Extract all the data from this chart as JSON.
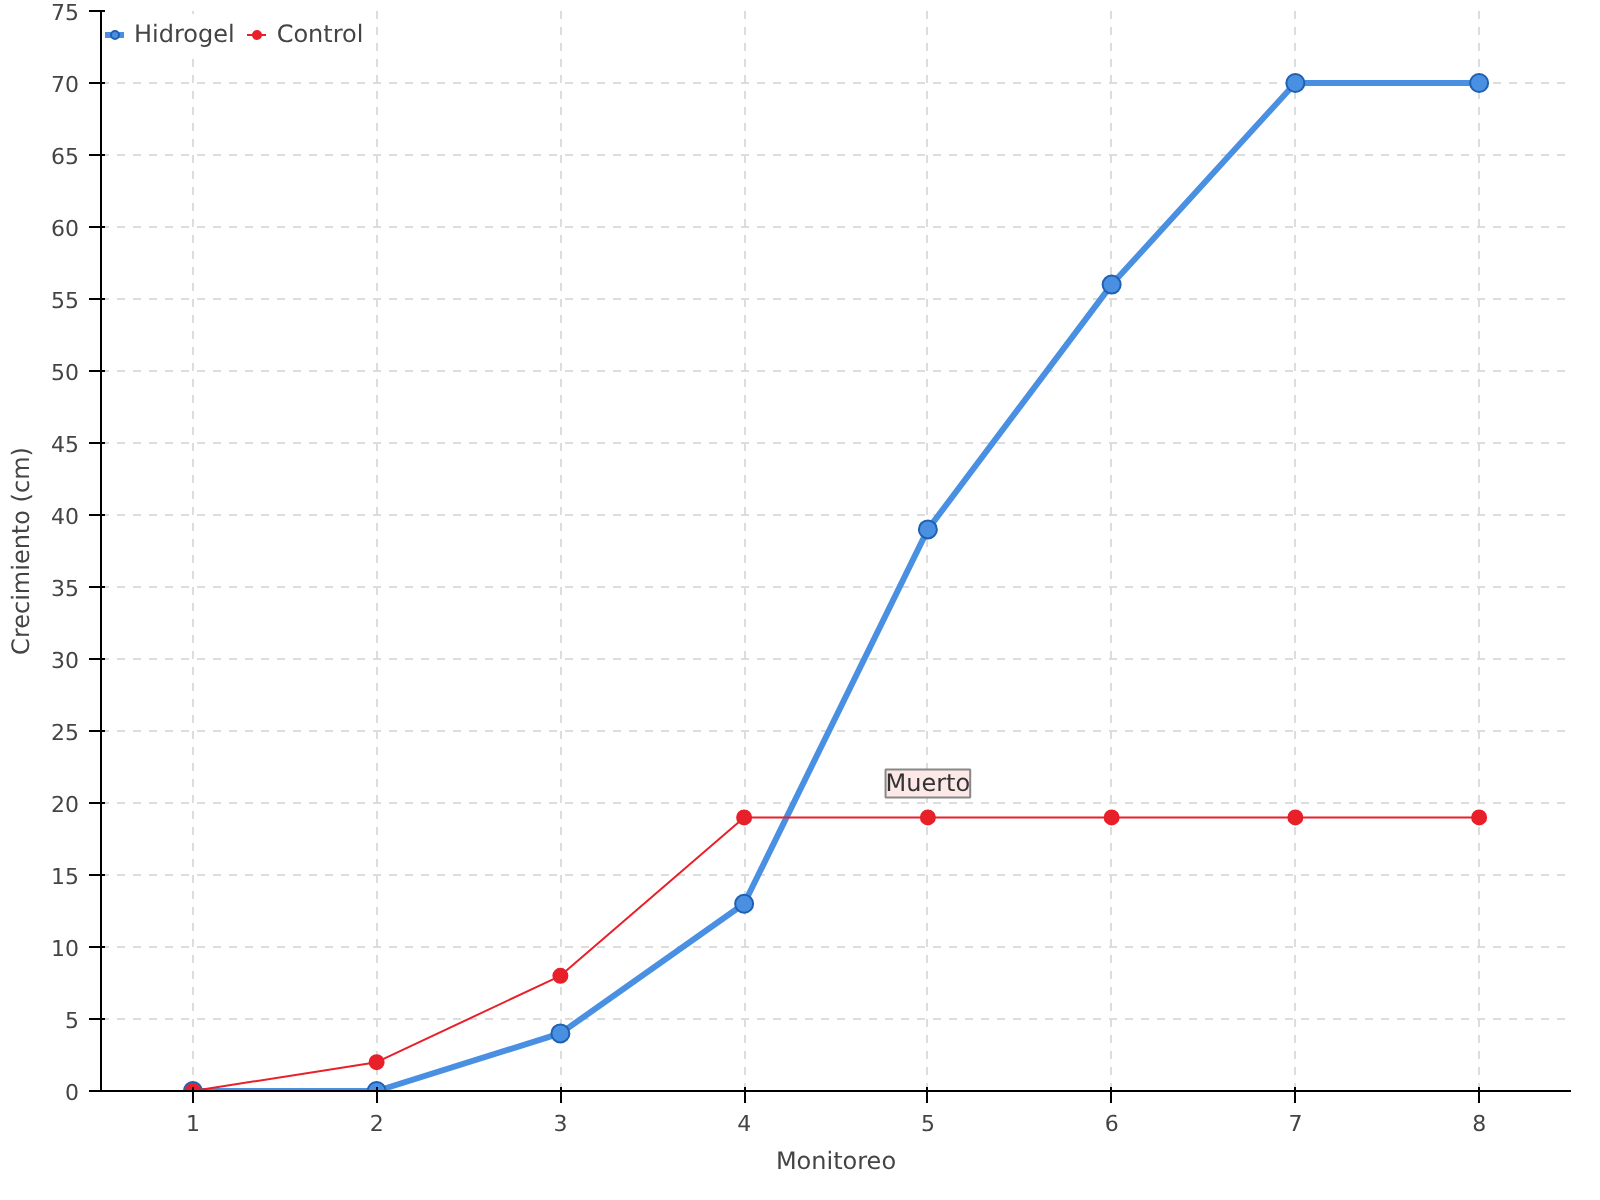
{
  "chart_data": {
    "type": "line",
    "xlabel": "Monitoreo",
    "ylabel": "Crecimiento (cm)",
    "categories": [
      "1",
      "2",
      "3",
      "4",
      "5",
      "6",
      "7",
      "8"
    ],
    "series": [
      {
        "name": "Hidrogel",
        "color": "#4a90e2",
        "values": [
          0,
          0,
          4,
          13,
          39,
          56,
          70,
          70
        ]
      },
      {
        "name": "Control",
        "color": "#e8202a",
        "values": [
          0,
          2,
          8,
          19,
          19,
          19,
          19,
          19
        ]
      }
    ],
    "ylim": [
      0,
      75
    ],
    "yticks": [
      0,
      5,
      10,
      15,
      20,
      25,
      30,
      35,
      40,
      45,
      50,
      55,
      60,
      65,
      70,
      75
    ],
    "annotations": [
      {
        "text": "Muerto",
        "x": "5",
        "y": 19
      }
    ],
    "grid": true,
    "legend": "top left",
    "marker": "circle",
    "line_style": "solid"
  }
}
